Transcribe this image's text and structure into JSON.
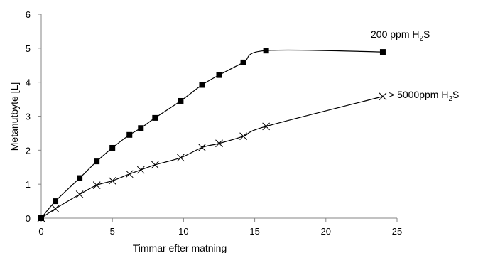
{
  "chart_data": {
    "type": "line",
    "xlabel": "Timmar efter matning",
    "ylabel": "Metanutbyte  [L]",
    "xlim": [
      0,
      25
    ],
    "ylim": [
      0,
      6
    ],
    "x_ticks": [
      "0",
      "5",
      "10",
      "15",
      "20",
      "25"
    ],
    "y_ticks": [
      "0",
      "1",
      "2",
      "3",
      "4",
      "5",
      "6"
    ],
    "grid": false,
    "series": [
      {
        "name": "200 ppm H2S",
        "label_main": "200 ppm H",
        "label_sub": "2",
        "label_tail": "S",
        "marker": "square",
        "x": [
          0,
          1,
          2.7,
          3.9,
          5,
          6.2,
          7,
          8,
          9.8,
          11.3,
          12.5,
          14.2,
          15.8,
          24
        ],
        "y": [
          0,
          0.5,
          1.18,
          1.67,
          2.07,
          2.45,
          2.65,
          2.95,
          3.45,
          3.92,
          4.21,
          4.58,
          4.93,
          4.89
        ]
      },
      {
        "name": "> 5000ppm H2S",
        "label_main": "> 5000ppm H",
        "label_sub": "2",
        "label_tail": "S",
        "marker": "x",
        "x": [
          0,
          1,
          2.7,
          3.9,
          5,
          6.2,
          7,
          8,
          9.8,
          11.3,
          12.5,
          14.2,
          15.8,
          24
        ],
        "y": [
          0,
          0.28,
          0.7,
          0.97,
          1.1,
          1.3,
          1.42,
          1.57,
          1.78,
          2.08,
          2.2,
          2.41,
          2.7,
          3.58
        ]
      }
    ]
  }
}
